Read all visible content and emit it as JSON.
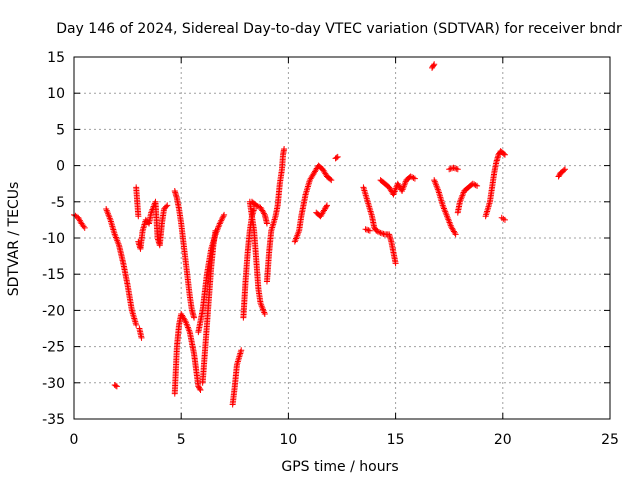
{
  "chart_data": {
    "type": "scatter",
    "title": "Day 146 of 2024, Sidereal Day-to-day VTEC variation (SDTVAR) for receiver bndr",
    "xlabel": "GPS time / hours",
    "ylabel": "SDTVAR / TECUs",
    "xlim": [
      0,
      25
    ],
    "ylim": [
      -35,
      15
    ],
    "xticks": [
      0,
      5,
      10,
      15,
      20,
      25
    ],
    "yticks": [
      -35,
      -30,
      -25,
      -20,
      -15,
      -10,
      -5,
      0,
      5,
      10,
      15
    ],
    "grid": true,
    "marker": "+",
    "color": "#ff0000",
    "series": [
      {
        "name": "SDTVAR",
        "segments": [
          [
            [
              0.0,
              -6.8
            ],
            [
              0.2,
              -7.2
            ],
            [
              0.35,
              -8.0
            ],
            [
              0.5,
              -8.6
            ]
          ],
          [
            [
              1.5,
              -6.0
            ],
            [
              1.7,
              -7.5
            ],
            [
              1.9,
              -9.5
            ],
            [
              2.1,
              -11.0
            ],
            [
              2.3,
              -13.5
            ],
            [
              2.5,
              -16.5
            ],
            [
              2.7,
              -20.0
            ],
            [
              2.9,
              -22.0
            ]
          ],
          [
            [
              1.9,
              -30.3
            ],
            [
              2.0,
              -30.5
            ]
          ],
          [
            [
              3.0,
              -10.5
            ],
            [
              3.1,
              -11.5
            ],
            [
              3.2,
              -9.0
            ],
            [
              3.35,
              -7.5
            ],
            [
              3.5,
              -8.0
            ],
            [
              3.6,
              -6.5
            ],
            [
              3.8,
              -5.0
            ],
            [
              3.9,
              -10.0
            ],
            [
              4.0,
              -11.0
            ],
            [
              4.1,
              -8.0
            ],
            [
              4.2,
              -6.0
            ],
            [
              4.35,
              -5.5
            ]
          ],
          [
            [
              3.05,
              -22.5
            ],
            [
              3.15,
              -23.8
            ]
          ],
          [
            [
              2.9,
              -3.0
            ],
            [
              2.95,
              -5.0
            ],
            [
              3.0,
              -7.0
            ]
          ],
          [
            [
              4.7,
              -31.5
            ],
            [
              4.8,
              -25.0
            ],
            [
              4.9,
              -22.0
            ],
            [
              5.0,
              -20.5
            ],
            [
              5.2,
              -21.5
            ],
            [
              5.4,
              -23.0
            ],
            [
              5.6,
              -26.0
            ],
            [
              5.8,
              -30.5
            ],
            [
              5.9,
              -31.0
            ]
          ],
          [
            [
              4.7,
              -3.5
            ],
            [
              4.8,
              -4.5
            ],
            [
              4.9,
              -6.0
            ],
            [
              5.0,
              -8.0
            ],
            [
              5.1,
              -10.5
            ],
            [
              5.2,
              -13.0
            ],
            [
              5.3,
              -15.5
            ],
            [
              5.4,
              -18.0
            ],
            [
              5.5,
              -20.0
            ],
            [
              5.6,
              -21.0
            ]
          ],
          [
            [
              5.8,
              -23.0
            ],
            [
              6.0,
              -20.0
            ],
            [
              6.2,
              -15.0
            ],
            [
              6.4,
              -11.5
            ],
            [
              6.6,
              -9.5
            ],
            [
              6.8,
              -8.0
            ],
            [
              7.0,
              -6.8
            ]
          ],
          [
            [
              6.0,
              -30.0
            ],
            [
              6.1,
              -26.0
            ],
            [
              6.2,
              -22.0
            ],
            [
              6.3,
              -18.0
            ],
            [
              6.4,
              -14.0
            ],
            [
              6.5,
              -11.0
            ],
            [
              6.6,
              -9.0
            ]
          ],
          [
            [
              7.4,
              -33.0
            ],
            [
              7.5,
              -30.5
            ],
            [
              7.6,
              -27.5
            ],
            [
              7.8,
              -25.5
            ]
          ],
          [
            [
              7.9,
              -21.0
            ],
            [
              8.0,
              -16.0
            ],
            [
              8.1,
              -12.0
            ],
            [
              8.2,
              -9.0
            ],
            [
              8.3,
              -7.0
            ],
            [
              8.4,
              -6.0
            ]
          ],
          [
            [
              8.2,
              -5.0
            ],
            [
              8.4,
              -9.0
            ],
            [
              8.5,
              -13.0
            ],
            [
              8.6,
              -17.0
            ],
            [
              8.7,
              -19.0
            ],
            [
              8.9,
              -20.5
            ]
          ],
          [
            [
              8.3,
              -5.0
            ],
            [
              8.5,
              -5.5
            ],
            [
              8.7,
              -5.8
            ],
            [
              8.9,
              -6.8
            ],
            [
              9.0,
              -8.0
            ]
          ],
          [
            [
              9.0,
              -16.0
            ],
            [
              9.1,
              -12.0
            ],
            [
              9.2,
              -9.0
            ],
            [
              9.4,
              -7.0
            ],
            [
              9.5,
              -5.5
            ],
            [
              9.6,
              -2.5
            ],
            [
              9.7,
              -0.5
            ],
            [
              9.75,
              1.5
            ],
            [
              9.8,
              2.3
            ]
          ],
          [
            [
              10.3,
              -10.5
            ],
            [
              10.5,
              -9.0
            ],
            [
              10.6,
              -7.0
            ],
            [
              10.8,
              -4.0
            ],
            [
              11.0,
              -2.0
            ],
            [
              11.2,
              -1.0
            ],
            [
              11.4,
              0.0
            ],
            [
              11.6,
              -0.5
            ],
            [
              11.8,
              -1.5
            ],
            [
              12.0,
              -2.0
            ]
          ],
          [
            [
              11.3,
              -6.5
            ],
            [
              11.5,
              -7.0
            ],
            [
              11.7,
              -6.0
            ],
            [
              11.8,
              -5.5
            ]
          ],
          [
            [
              12.2,
              1.0
            ],
            [
              12.3,
              1.2
            ]
          ],
          [
            [
              13.5,
              -3.0
            ],
            [
              13.7,
              -5.0
            ],
            [
              13.9,
              -7.0
            ],
            [
              14.0,
              -8.5
            ],
            [
              14.1,
              -9.0
            ],
            [
              14.3,
              -9.3
            ],
            [
              14.5,
              -9.5
            ],
            [
              14.7,
              -9.5
            ],
            [
              14.8,
              -10.5
            ],
            [
              15.0,
              -13.5
            ]
          ],
          [
            [
              13.6,
              -8.8
            ],
            [
              13.8,
              -9.0
            ]
          ],
          [
            [
              14.3,
              -2.0
            ],
            [
              14.5,
              -2.5
            ],
            [
              14.7,
              -3.0
            ],
            [
              14.9,
              -4.0
            ],
            [
              15.1,
              -2.5
            ],
            [
              15.3,
              -3.5
            ],
            [
              15.5,
              -2.0
            ],
            [
              15.7,
              -1.5
            ],
            [
              15.9,
              -1.8
            ]
          ],
          [
            [
              16.7,
              13.5
            ],
            [
              16.8,
              14.0
            ]
          ],
          [
            [
              16.8,
              -2.0
            ],
            [
              17.0,
              -3.5
            ],
            [
              17.2,
              -5.5
            ],
            [
              17.4,
              -7.0
            ],
            [
              17.6,
              -8.5
            ],
            [
              17.8,
              -9.5
            ]
          ],
          [
            [
              17.5,
              -0.5
            ],
            [
              17.7,
              -0.3
            ],
            [
              17.9,
              -0.5
            ]
          ],
          [
            [
              17.9,
              -6.5
            ],
            [
              18.0,
              -5.0
            ],
            [
              18.2,
              -3.5
            ],
            [
              18.4,
              -3.0
            ],
            [
              18.6,
              -2.5
            ],
            [
              18.8,
              -2.8
            ]
          ],
          [
            [
              19.2,
              -7.0
            ],
            [
              19.4,
              -5.0
            ],
            [
              19.5,
              -3.0
            ],
            [
              19.6,
              -1.0
            ],
            [
              19.7,
              0.5
            ],
            [
              19.8,
              1.5
            ],
            [
              19.9,
              2.0
            ],
            [
              20.1,
              1.5
            ]
          ],
          [
            [
              19.95,
              -7.2
            ],
            [
              20.1,
              -7.5
            ]
          ],
          [
            [
              22.6,
              -1.5
            ],
            [
              22.7,
              -1.0
            ],
            [
              22.8,
              -0.8
            ],
            [
              22.9,
              -0.5
            ]
          ]
        ]
      }
    ]
  }
}
